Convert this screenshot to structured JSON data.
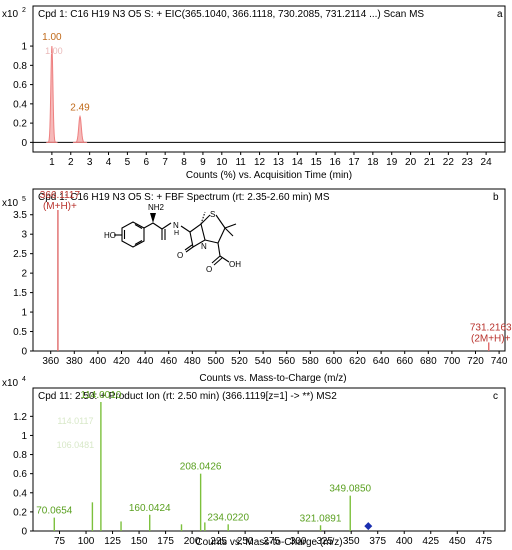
{
  "colors": {
    "eic": "#ee8080",
    "ms1": "#e06a6a",
    "ms2": "#7cc03c",
    "marker": "#1a2fb0",
    "frame": "#000000"
  },
  "chart_data": [
    {
      "panel": "a",
      "type": "line",
      "title": "Cpd 1: C16 H19 N3 O5 S: + EIC(365.1040, 366.1118, 730.2085, 731.2114 ...) Scan MS",
      "scale_label": "x10",
      "scale_exp": "2",
      "xlabel": "Counts (%) vs. Acquisition Time (min)",
      "xlim": [
        0,
        25
      ],
      "ylim": [
        -0.1,
        1.25
      ],
      "x_ticks": [
        "1",
        "2",
        "3",
        "4",
        "5",
        "6",
        "7",
        "8",
        "9",
        "10",
        "11",
        "12",
        "13",
        "14",
        "15",
        "16",
        "17",
        "18",
        "19",
        "20",
        "21",
        "22",
        "23",
        "24"
      ],
      "y_ticks": [
        "0",
        "0.2",
        "0.4",
        "0.6",
        "0.8",
        "1"
      ],
      "peaks": [
        {
          "rt": 1.0,
          "height": 1.0,
          "width": 0.12,
          "label": "1.00",
          "ghost": "1.00"
        },
        {
          "rt": 2.49,
          "height": 0.27,
          "width": 0.15,
          "label": "2.49"
        }
      ]
    },
    {
      "panel": "b",
      "type": "bar",
      "title": "Cpd 1: C16 H19 N3 O5 S: + FBF Spectrum (rt: 2.35-2.60 min) MS",
      "scale_label": "x10",
      "scale_exp": "5",
      "xlabel": "Counts vs. Mass-to-Charge (m/z)",
      "xlim": [
        345,
        745
      ],
      "ylim": [
        0,
        3.75
      ],
      "x_ticks": [
        "360",
        "380",
        "400",
        "420",
        "440",
        "460",
        "480",
        "500",
        "520",
        "540",
        "560",
        "580",
        "600",
        "620",
        "640",
        "660",
        "680",
        "700",
        "720",
        "740"
      ],
      "y_ticks": [
        "0",
        "0.5",
        "1",
        "1.5",
        "2",
        "2.5",
        "3",
        "3.5"
      ],
      "peaks": [
        {
          "mz": 366.1117,
          "height": 3.62,
          "label": "366.1117",
          "ion": "(M+H)+"
        },
        {
          "mz": 731.2163,
          "height": 0.22,
          "label": "731.2163",
          "ion": "(2M+H)+"
        }
      ],
      "structure_labels": {
        "amine": "NH2",
        "hydroxy": "HO",
        "nh": "N",
        "h": "H",
        "s": "S",
        "ring_n": "N",
        "oxo": "O",
        "acid_o": "O",
        "acid_oh": "OH"
      }
    },
    {
      "panel": "c",
      "type": "bar",
      "title": "Cpd 11: 2.50: + Product Ion (rt: 2.50 min) (366.1119[z=1] -> **) MS2",
      "scale_label": "x10",
      "scale_exp": "4",
      "xlabel": "Counts vs. Mass-to-Charge (m/z)",
      "xlim": [
        50,
        495
      ],
      "ylim": [
        0,
        1.35
      ],
      "x_ticks": [
        "75",
        "100",
        "125",
        "150",
        "175",
        "200",
        "225",
        "250",
        "275",
        "300",
        "325",
        "350",
        "375",
        "400",
        "425",
        "450",
        "475"
      ],
      "y_ticks": [
        "0",
        "0.2",
        "0.4",
        "0.6",
        "0.8",
        "1",
        "1.2"
      ],
      "peaks": [
        {
          "mz": 70.0654,
          "height": 0.14,
          "label": "70.0654"
        },
        {
          "mz": 106.0,
          "height": 0.3
        },
        {
          "mz": 114.001,
          "height": 1.35,
          "label": "114.0010"
        },
        {
          "mz": 133.0,
          "height": 0.1
        },
        {
          "mz": 160.0424,
          "height": 0.17,
          "label": "160.0424"
        },
        {
          "mz": 190.0,
          "height": 0.07
        },
        {
          "mz": 208.0426,
          "height": 0.6,
          "label": "208.0426"
        },
        {
          "mz": 212.0,
          "height": 0.09
        },
        {
          "mz": 234.022,
          "height": 0.07,
          "label": "234.0220"
        },
        {
          "mz": 321.0891,
          "height": 0.06,
          "label": "321.0891"
        },
        {
          "mz": 349.085,
          "height": 0.37,
          "label": "349.0850"
        }
      ],
      "ghost_labels": [
        "114.0117",
        "106.0481"
      ],
      "precursor_marker": {
        "mz": 366.11,
        "height": 0.02
      }
    }
  ]
}
